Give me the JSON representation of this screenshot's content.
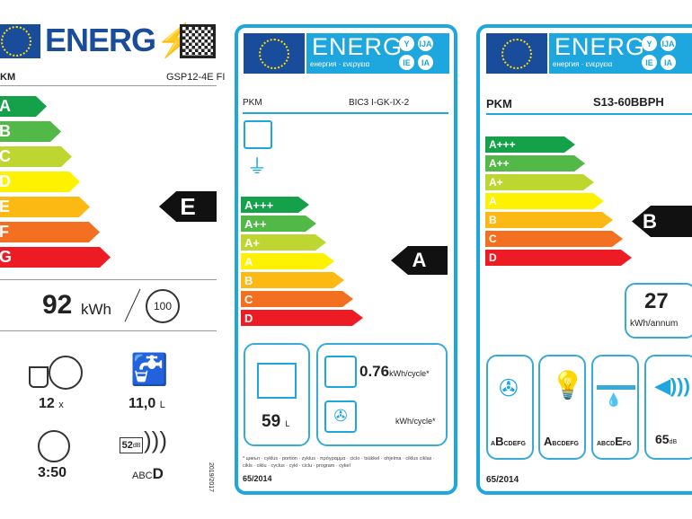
{
  "colors": {
    "accent": "#1ea6df",
    "eu_blue": "#1a4c9c",
    "scale": [
      "#15a04a",
      "#52b847",
      "#bed630",
      "#fff200",
      "#fdb913",
      "#f37021",
      "#ed1c24"
    ]
  },
  "dishwasher": {
    "header": "ENERG",
    "brand": "KM",
    "model": "GSP12-4E FI",
    "classes": [
      "A",
      "B",
      "C",
      "D",
      "E",
      "F",
      "G"
    ],
    "rating": "E",
    "energy_value": "92",
    "energy_unit": "kWh",
    "cycles": "100",
    "place_settings": "12",
    "place_unit": "x",
    "water": "11,0",
    "water_unit": "L",
    "duration": "3:50",
    "noise": "52",
    "noise_unit": "dB",
    "noise_scale": "ABC",
    "noise_class": "D",
    "regulation": "2019/2017"
  },
  "oven": {
    "header": "ENERG",
    "subheader": "енергия · ενεργεια",
    "circles": [
      "Y",
      "IJA",
      "IE",
      "IA"
    ],
    "brand": "PKM",
    "model": "BIC3 I-GK-IX-2",
    "classes": [
      "A+++",
      "A++",
      "A+",
      "A",
      "B",
      "C",
      "D"
    ],
    "rating": "A",
    "volume": "59",
    "volume_unit": "L",
    "conventional_value": "0.76",
    "conventional_unit": "kWh/cycle*",
    "fan_unit": "kWh/cycle*",
    "footnote": "* цикъл · cyklus · portion · zyklus · πρόγραμμα · ciclo · tsükkel · ohjelma · ciklus ciklas · cikls · ciklu · cyclus · cykl · ciclu · program · cykel",
    "regulation": "65/2014"
  },
  "hood": {
    "header": "ENERG",
    "subheader": "енергия · ενεργεια",
    "circles": [
      "Y",
      "IJA",
      "IE",
      "IA"
    ],
    "brand": "PKM",
    "model": "S13-60BBPH",
    "classes": [
      "A+++",
      "A++",
      "A+",
      "A",
      "B",
      "C",
      "D"
    ],
    "rating": "B",
    "annual_energy": "27",
    "annual_unit": "kWh/annum",
    "fluid": {
      "pre": "A",
      "cls": "B",
      "post": "CDEFG"
    },
    "lighting": {
      "pre": "",
      "cls": "A",
      "post": "BCDEFG"
    },
    "grease": {
      "pre": "ABCD",
      "cls": "E",
      "post": "FG"
    },
    "noise": "65",
    "noise_unit": "dB",
    "regulation": "65/2014"
  }
}
